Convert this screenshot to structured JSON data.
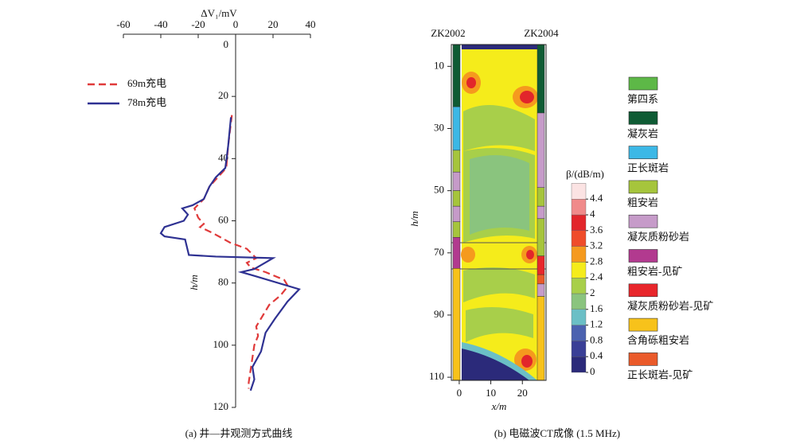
{
  "chart_data": [
    {
      "type": "line",
      "xlabel": "ΔV₁/mV",
      "ylabel": "h/m",
      "xlim": [
        -60,
        40
      ],
      "xticks": [
        -60,
        -40,
        -20,
        0,
        20,
        40
      ],
      "ylim": [
        0,
        120
      ],
      "yticks": [
        0,
        20,
        40,
        60,
        80,
        100,
        120
      ],
      "y_inverted": true,
      "legend": "upper left",
      "caption": "(a) 井—井观测方式曲线",
      "series": [
        {
          "name": "69m充电",
          "color": "#e03a3a",
          "dashed": true,
          "x": [
            -2,
            -4,
            -5,
            -11,
            -14,
            -17,
            -22,
            -20,
            -17,
            -19,
            -12,
            -3,
            6,
            11,
            6,
            8,
            16,
            26,
            28,
            24,
            18,
            15,
            11,
            12,
            10,
            9,
            8,
            7,
            7
          ],
          "y": [
            26,
            36,
            43,
            47,
            49,
            53,
            56,
            59,
            61,
            62,
            64,
            67,
            69,
            72,
            73.5,
            75,
            76.5,
            79,
            81,
            84,
            87,
            90,
            94,
            97,
            100,
            104,
            108,
            112,
            114
          ]
        },
        {
          "name": "78m充电",
          "color": "#2e3192",
          "dashed": false,
          "x": [
            -2.5,
            -4,
            -5.5,
            -10.6,
            -14,
            -17,
            -23,
            -28.5,
            -25.5,
            -27.7,
            -38,
            -40,
            -38,
            -27,
            -25,
            -10.6,
            20,
            10,
            3,
            10,
            34,
            27.7,
            21,
            16,
            13.6,
            9,
            10,
            8
          ],
          "y": [
            26.7,
            36,
            43,
            46,
            49,
            53,
            55,
            56,
            58,
            60,
            62,
            64,
            65,
            66,
            71,
            71.5,
            72,
            75.5,
            76.5,
            77.7,
            82,
            86,
            91.5,
            96,
            102,
            107,
            111,
            114.6
          ]
        }
      ]
    },
    {
      "type": "contour",
      "xlabel": "x/m",
      "ylabel": "h/m",
      "xlim": [
        -2.5,
        27.5
      ],
      "xticks": [
        0,
        10,
        20
      ],
      "ylim": [
        3,
        111
      ],
      "yticks": [
        10,
        30,
        50,
        70,
        90,
        110
      ],
      "y_inverted": true,
      "caption": "(b) 电磁波CT成像 (1.5 MHz)",
      "boreholes": [
        {
          "name": "ZK2002",
          "side": "left",
          "segments": [
            {
              "from": 3,
              "to": 23,
              "color": "#0f5b34"
            },
            {
              "from": 23,
              "to": 37,
              "color": "#3cb8e6"
            },
            {
              "from": 37,
              "to": 44,
              "color": "#a6c53c"
            },
            {
              "from": 44,
              "to": 50,
              "color": "#c69bc9"
            },
            {
              "from": 50,
              "to": 55,
              "color": "#a6c53c"
            },
            {
              "from": 55,
              "to": 60,
              "color": "#c69bc9"
            },
            {
              "from": 60,
              "to": 65,
              "color": "#a6c53c"
            },
            {
              "from": 65,
              "to": 75,
              "color": "#b23a8f"
            },
            {
              "from": 75,
              "to": 111,
              "color": "#f7c21b"
            }
          ]
        },
        {
          "name": "ZK2004",
          "side": "right",
          "segments": [
            {
              "from": 3,
              "to": 25,
              "color": "#0f5b34"
            },
            {
              "from": 25,
              "to": 49,
              "color": "#c69bc9"
            },
            {
              "from": 49,
              "to": 55,
              "color": "#a6c53c"
            },
            {
              "from": 55,
              "to": 59,
              "color": "#c69bc9"
            },
            {
              "from": 59,
              "to": 71,
              "color": "#a6c53c"
            },
            {
              "from": 71,
              "to": 77,
              "color": "#e8262b"
            },
            {
              "from": 77,
              "to": 80,
              "color": "#ea5a2a"
            },
            {
              "from": 80,
              "to": 84,
              "color": "#c69bc9"
            },
            {
              "from": 84,
              "to": 111,
              "color": "#f7c21b"
            }
          ]
        }
      ],
      "colorbar": {
        "label": "β/(dB/m)",
        "ticks": [
          0,
          0.4,
          0.8,
          1.2,
          1.6,
          2,
          2.4,
          2.8,
          3.2,
          3.6,
          4,
          4.4
        ],
        "colors": [
          "#2b2a7a",
          "#3a3f96",
          "#4b62b0",
          "#6bbfc6",
          "#8ac47e",
          "#a8cf4a",
          "#f5ec1b",
          "#f59a1e",
          "#ef4c2a",
          "#e2262b",
          "#f08a8a",
          "#fbe3e3"
        ]
      },
      "lithology": [
        {
          "name": "第四系",
          "color": "#5db847"
        },
        {
          "name": "凝灰岩",
          "color": "#0f5b34"
        },
        {
          "name": "正长斑岩",
          "color": "#3cb8e6"
        },
        {
          "name": "粗安岩",
          "color": "#a6c53c"
        },
        {
          "name": "凝灰质粉砂岩",
          "color": "#c69bc9"
        },
        {
          "name": "粗安岩-见矿",
          "color": "#b23a8f"
        },
        {
          "name": "凝灰质粉砂岩-见矿",
          "color": "#e8262b"
        },
        {
          "name": "含角砾粗安岩",
          "color": "#f7c21b"
        },
        {
          "name": "正长斑岩-见矿",
          "color": "#ea5a2a"
        }
      ]
    }
  ]
}
